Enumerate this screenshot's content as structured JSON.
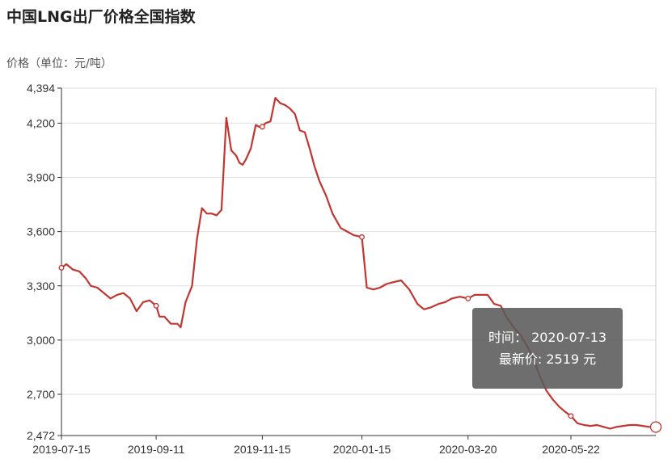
{
  "chart_data": {
    "type": "line",
    "title": "中国LNG出厂价格全国指数",
    "ylabel": "价格（单位：元/吨）",
    "ylim": [
      2472,
      4394
    ],
    "yticks": [
      2472,
      2700,
      3000,
      3300,
      3600,
      3900,
      4200,
      4394
    ],
    "ytick_labels": [
      "2,472",
      "2,700",
      "3,000",
      "3,300",
      "3,600",
      "3,900",
      "4,200",
      "4,394"
    ],
    "xlim": [
      "2019-07-15",
      "2020-07-13"
    ],
    "xtick_labels": [
      "2019-07-15",
      "2019-09-11",
      "2019-11-15",
      "2020-01-15",
      "2020-03-20",
      "2020-05-22"
    ],
    "grid": true,
    "colors": {
      "line": "#c23531",
      "grid": "#e0e0e0",
      "axis": "#333333"
    },
    "series": [
      {
        "x": [
          "2019-07-15",
          "2019-07-18",
          "2019-07-22",
          "2019-07-26",
          "2019-07-30",
          "2019-08-02",
          "2019-08-06",
          "2019-08-10",
          "2019-08-14",
          "2019-08-18",
          "2019-08-22",
          "2019-08-26",
          "2019-08-30",
          "2019-09-03",
          "2019-09-07",
          "2019-09-11",
          "2019-09-13",
          "2019-09-16",
          "2019-09-20",
          "2019-09-24",
          "2019-09-26",
          "2019-09-29",
          "2019-10-03",
          "2019-10-06",
          "2019-10-09",
          "2019-10-12",
          "2019-10-15",
          "2019-10-18",
          "2019-10-21",
          "2019-10-24",
          "2019-10-27",
          "2019-10-30",
          "2019-11-01",
          "2019-11-03",
          "2019-11-05",
          "2019-11-08",
          "2019-11-11",
          "2019-11-13",
          "2019-11-15",
          "2019-11-17",
          "2019-11-20",
          "2019-11-23",
          "2019-11-26",
          "2019-11-29",
          "2019-12-02",
          "2019-12-05",
          "2019-12-08",
          "2019-12-11",
          "2019-12-14",
          "2019-12-17",
          "2019-12-20",
          "2019-12-24",
          "2019-12-28",
          "2020-01-02",
          "2020-01-06",
          "2020-01-10",
          "2020-01-15",
          "2020-01-18",
          "2020-01-22",
          "2020-01-26",
          "2020-01-30",
          "2020-02-03",
          "2020-02-08",
          "2020-02-13",
          "2020-02-18",
          "2020-02-22",
          "2020-02-26",
          "2020-03-02",
          "2020-03-06",
          "2020-03-10",
          "2020-03-15",
          "2020-03-20",
          "2020-03-24",
          "2020-03-28",
          "2020-04-01",
          "2020-04-05",
          "2020-04-09",
          "2020-04-13",
          "2020-04-17",
          "2020-04-21",
          "2020-04-25",
          "2020-04-29",
          "2020-05-03",
          "2020-05-07",
          "2020-05-11",
          "2020-05-15",
          "2020-05-19",
          "2020-05-22",
          "2020-05-26",
          "2020-05-30",
          "2020-06-03",
          "2020-06-07",
          "2020-06-11",
          "2020-06-15",
          "2020-06-19",
          "2020-06-23",
          "2020-06-27",
          "2020-07-01",
          "2020-07-05",
          "2020-07-09",
          "2020-07-13"
        ],
        "values": [
          3400,
          3420,
          3390,
          3380,
          3340,
          3300,
          3290,
          3260,
          3230,
          3250,
          3260,
          3230,
          3160,
          3210,
          3220,
          3190,
          3130,
          3130,
          3090,
          3090,
          3070,
          3210,
          3300,
          3560,
          3730,
          3700,
          3700,
          3690,
          3720,
          4230,
          4050,
          4020,
          3980,
          3970,
          4000,
          4060,
          4190,
          4180,
          4180,
          4200,
          4210,
          4340,
          4310,
          4300,
          4280,
          4250,
          4160,
          4150,
          4060,
          3960,
          3880,
          3800,
          3700,
          3620,
          3600,
          3580,
          3570,
          3290,
          3280,
          3290,
          3310,
          3320,
          3330,
          3280,
          3200,
          3170,
          3180,
          3200,
          3210,
          3230,
          3240,
          3230,
          3250,
          3250,
          3250,
          3200,
          3190,
          3120,
          3070,
          3030,
          2970,
          2900,
          2800,
          2720,
          2670,
          2630,
          2600,
          2580,
          2540,
          2530,
          2525,
          2530,
          2520,
          2510,
          2520,
          2525,
          2530,
          2530,
          2525,
          2520,
          2519
        ]
      }
    ],
    "markers_at": [
      "2019-07-15",
      "2019-09-11",
      "2019-11-15",
      "2020-01-15",
      "2020-03-20",
      "2020-05-22",
      "2020-07-13"
    ],
    "tooltip": {
      "time_label": "时间：",
      "time_value": "2020-07-13",
      "price_label": "最新价:",
      "price_value": "2519",
      "price_unit": "元"
    }
  }
}
